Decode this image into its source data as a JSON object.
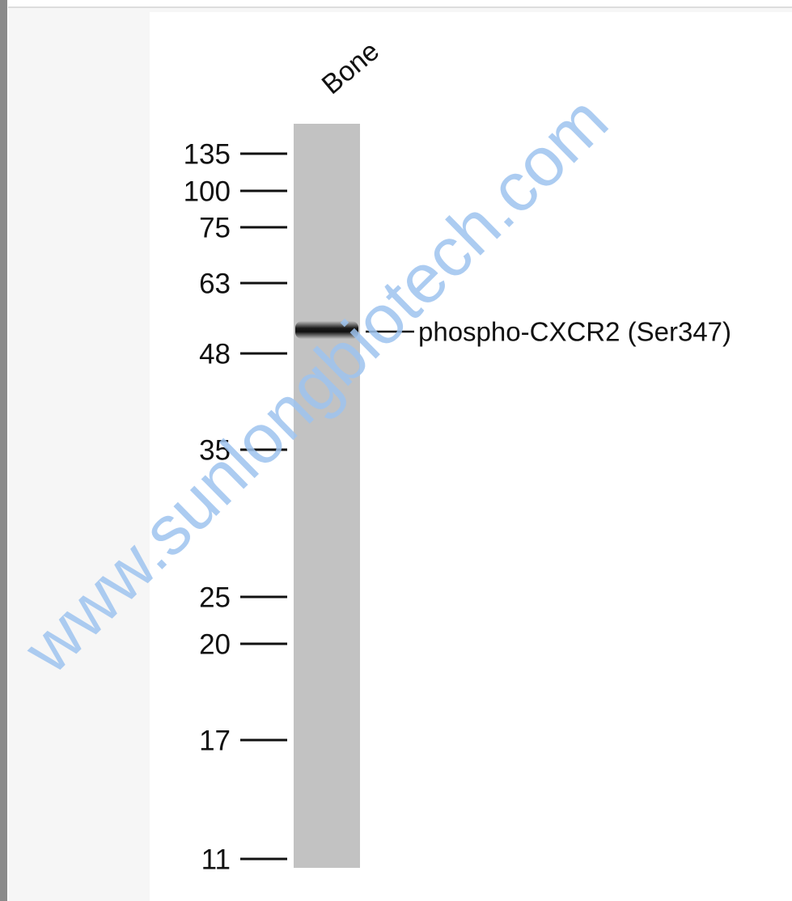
{
  "figure": {
    "lane_label": "Bone",
    "markers": [
      135,
      100,
      75,
      63,
      48,
      35,
      25,
      20,
      17,
      11
    ],
    "band_label": "phospho-CXCR2 (Ser347)",
    "watermark": "www.sunlongbiotech.com"
  }
}
